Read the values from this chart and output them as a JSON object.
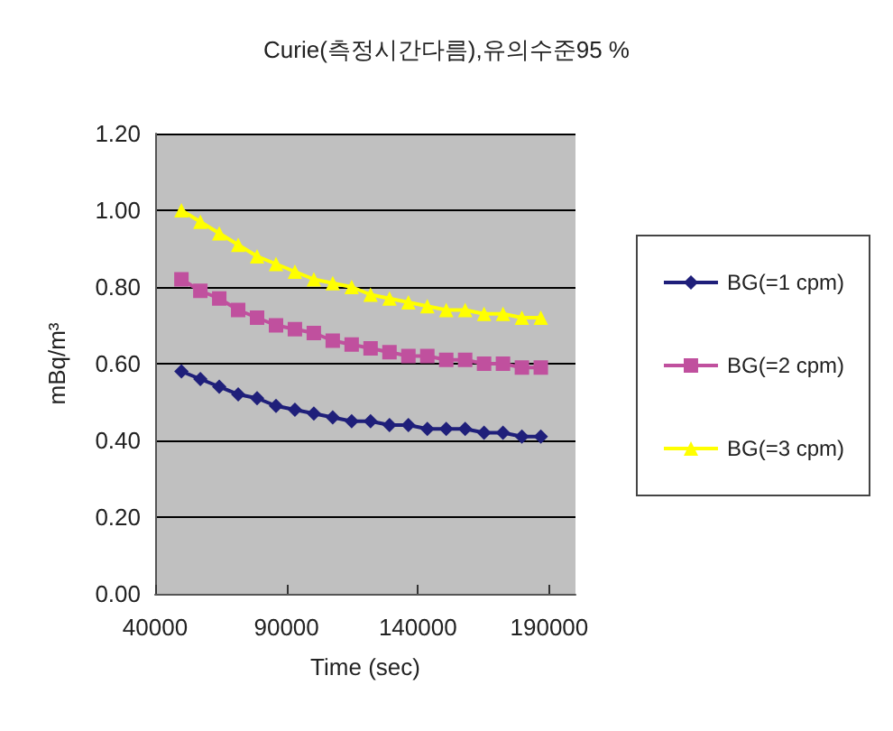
{
  "chart_data": {
    "type": "line",
    "title": "Curie(측정시간다름),유의수준95 %",
    "xlabel": "Time (sec)",
    "ylabel": "mBq/m³",
    "x": [
      50000,
      57200,
      64400,
      71600,
      78800,
      86000,
      93200,
      100400,
      107600,
      114800,
      122000,
      129200,
      136400,
      143600,
      150800,
      158000,
      165200,
      172400,
      179600,
      186800
    ],
    "series": [
      {
        "name": "BG(=1 cpm)",
        "color": "#1f1f7a",
        "marker": "diamond",
        "values": [
          0.58,
          0.56,
          0.54,
          0.52,
          0.51,
          0.49,
          0.48,
          0.47,
          0.46,
          0.45,
          0.45,
          0.44,
          0.44,
          0.43,
          0.43,
          0.43,
          0.42,
          0.42,
          0.41,
          0.41
        ]
      },
      {
        "name": "BG(=2 cpm)",
        "color": "#c0509e",
        "marker": "square",
        "values": [
          0.82,
          0.79,
          0.77,
          0.74,
          0.72,
          0.7,
          0.69,
          0.68,
          0.66,
          0.65,
          0.64,
          0.63,
          0.62,
          0.62,
          0.61,
          0.61,
          0.6,
          0.6,
          0.59,
          0.59
        ]
      },
      {
        "name": "BG(=3 cpm)",
        "color": "#ffff00",
        "marker": "triangle",
        "values": [
          1.0,
          0.97,
          0.94,
          0.91,
          0.88,
          0.86,
          0.84,
          0.82,
          0.81,
          0.8,
          0.78,
          0.77,
          0.76,
          0.75,
          0.74,
          0.74,
          0.73,
          0.73,
          0.72,
          0.72
        ]
      }
    ],
    "xlim": [
      40000,
      200000
    ],
    "xticks": [
      40000,
      90000,
      140000,
      190000
    ],
    "ylim": [
      0,
      1.2
    ],
    "yticks": [
      {
        "value": 0,
        "label": "0.00"
      },
      {
        "value": 0.2,
        "label": "0.20"
      },
      {
        "value": 0.4,
        "label": "0.40"
      },
      {
        "value": 0.6,
        "label": "0.60"
      },
      {
        "value": 0.8,
        "label": "0.80"
      },
      {
        "value": 1.0,
        "label": "1.00"
      },
      {
        "value": 1.2,
        "label": "1.20"
      }
    ],
    "grid": "y",
    "legend": "right"
  }
}
